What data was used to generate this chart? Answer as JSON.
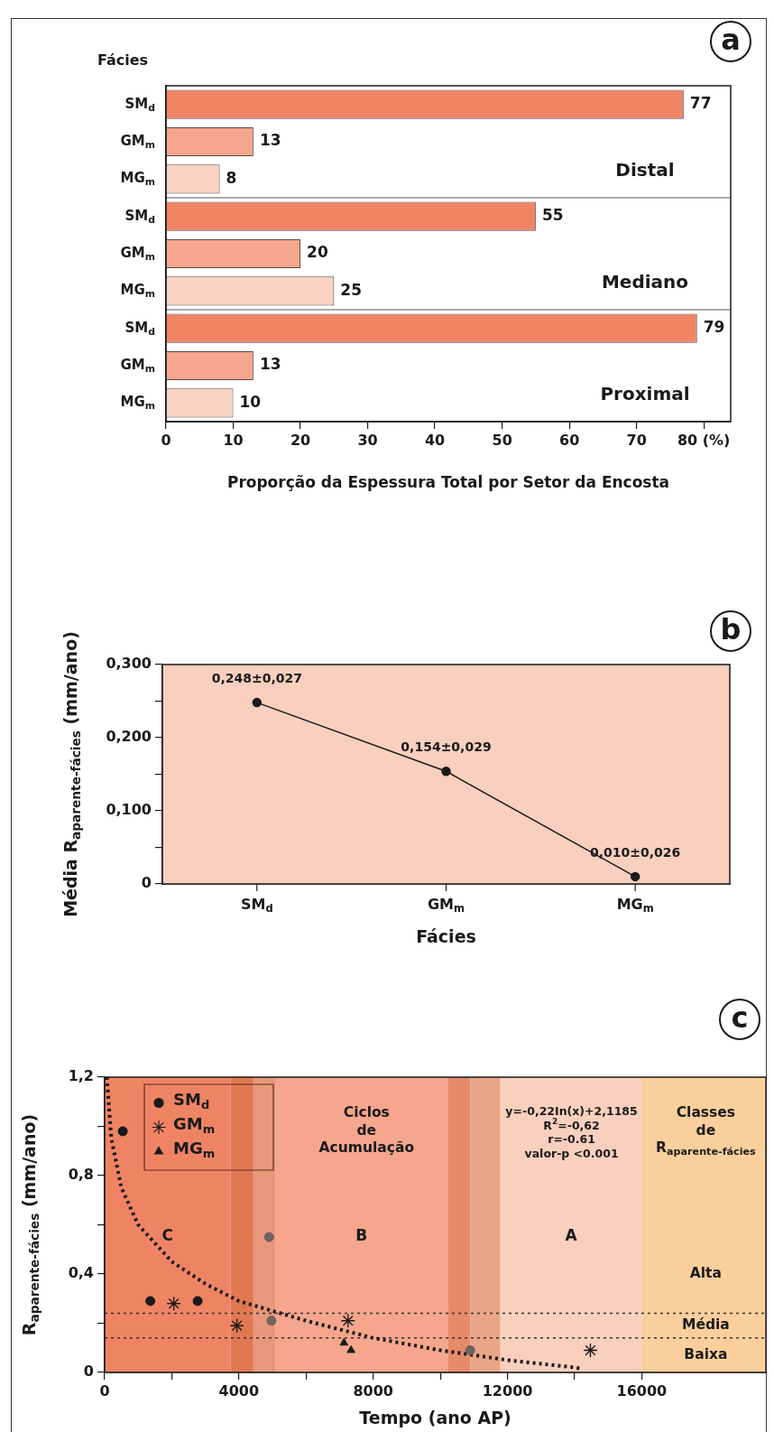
{
  "chart_data": [
    {
      "type": "bar",
      "orientation": "horizontal",
      "title": "a",
      "ylabel": "Fácies",
      "xlabel": "Proporção da Espessura Total por Setor da Encosta",
      "categories": [
        "SM$_{d}$",
        "GM$_{m}$",
        "MG$_{m}$",
        "SM$_{d}$",
        "GM$_{m}$",
        "MG$_{m}$",
        "SM$_{d}$",
        "GM$_{m}$",
        "MG$_{m}$"
      ],
      "values": [
        77,
        13,
        8,
        55,
        20,
        25,
        79,
        13,
        10
      ],
      "colors": [
        "#f08465",
        "#f5a68c",
        "#f9d3c3",
        "#f08465",
        "#f5a68c",
        "#f9d3c3",
        "#f08465",
        "#f5a68c",
        "#f9d3c3"
      ],
      "xlim": [
        0,
        84
      ],
      "xticks": [
        0,
        10,
        20,
        30,
        40,
        50,
        60,
        70,
        {
          "value": 80,
          "label": "80 (%)"
        }
      ],
      "data_labels": true,
      "annotations": [
        "Distal",
        "Mediano",
        "Proximal"
      ]
    },
    {
      "type": "line",
      "title": "b",
      "xlabel": "Fácies",
      "ylabel": "Média R$_{aparente-fácies}$ (mm/ano)",
      "categories": [
        "SM$_{d}$",
        "GM$_{m}$",
        "MG$_{m}$"
      ],
      "values": [
        0.248,
        0.154,
        0.01
      ],
      "color": "#1a1a1a",
      "marker": "circle",
      "value_labels": [
        "0,248±0,027",
        "0,154±0,029",
        "0,010±0,026"
      ],
      "ylim": [
        0,
        0.3
      ],
      "yticks": [
        0,
        {
          "value": 0.05,
          "label": null
        },
        {
          "value": 0.1,
          "label": "0,100"
        },
        {
          "value": 0.15,
          "label": null
        },
        {
          "value": 0.2,
          "label": "0,200"
        },
        {
          "value": 0.25,
          "label": null
        },
        {
          "value": 0.3,
          "label": "0,300"
        }
      ]
    },
    {
      "type": "scatter",
      "title": "c",
      "xlabel": "Tempo (ano AP)",
      "ylabel": "R$_{aparente-fácies}$ (mm/ano)",
      "legend": "top left",
      "series": [
        {
          "name": "SM$_{d}$",
          "type": "scatter",
          "marker": "circle",
          "color": "#1a1a1a",
          "colors": [
            "#1a1a1a",
            "#1a1a1a",
            "#1a1a1a",
            "#6e625c",
            "#6e625c",
            "#6e625c"
          ],
          "x": [
            540,
            1360,
            2770,
            4900,
            4970,
            10890
          ],
          "values": [
            0.98,
            0.29,
            0.29,
            0.55,
            0.21,
            0.09
          ]
        },
        {
          "name": "GM$_{m}$",
          "type": "scatter",
          "marker": "cross",
          "color": "#1a1a1a",
          "x": [
            2060,
            3940,
            7250,
            14470
          ],
          "values": [
            0.28,
            0.19,
            0.21,
            0.09
          ]
        },
        {
          "name": "MG$_{m}$",
          "type": "scatter",
          "marker": "triangle",
          "color": "#1a1a1a",
          "x": [
            7130,
            7340
          ],
          "values": [
            0.12,
            0.09
          ]
        },
        {
          "type": "line",
          "marker": "none",
          "line_style": "dotted",
          "color": "#1a1a1a",
          "x": [
            65,
            200,
            500,
            1000,
            2000,
            3000,
            4000,
            6000,
            8000,
            10000,
            12000,
            14000,
            14200
          ],
          "values": [
            1.2,
            0.95,
            0.75,
            0.6,
            0.45,
            0.36,
            0.29,
            0.21,
            0.14,
            0.09,
            0.05,
            0.02,
            0.015
          ]
        }
      ],
      "bands": [
        {
          "axis": "x",
          "from": 0,
          "to": 3750,
          "label": "C",
          "color": "#ef8465"
        },
        {
          "axis": "x",
          "from": 3750,
          "to": 4430,
          "color": "#e27852"
        },
        {
          "axis": "x",
          "from": 4430,
          "to": 5080,
          "color": "#e8977a"
        },
        {
          "axis": "x",
          "from": 5080,
          "to": 10220,
          "label": "B",
          "color": "#f5a68c"
        },
        {
          "axis": "x",
          "from": 10220,
          "to": 10900,
          "color": "#e58b6a"
        },
        {
          "axis": "x",
          "from": 10900,
          "to": 11790,
          "color": "#e9a686"
        },
        {
          "axis": "x",
          "from": 11790,
          "to": 16000,
          "label": "A",
          "color": "#f9cfbd"
        },
        {
          "axis": "x",
          "from": 16000,
          "to": 19700,
          "color": "#fbcf9b"
        }
      ],
      "ref_lines": [
        {
          "axis": "y",
          "value": 0.24,
          "color": "#333333",
          "line_style": "dotted"
        },
        {
          "axis": "y",
          "value": 0.14,
          "color": "#333333",
          "line_style": "dotted"
        }
      ],
      "annotations": [
        "Ciclos\nde\nAcumulação",
        "y=-0,22In(x)+2,1185\nR$^{2}$=-0,62\nr=-0.61\nvalor-p <0.001",
        "Classes\nde\nR$_{aparente-fácies}$",
        "Alta",
        "Média",
        "Baixa"
      ],
      "xlim": [
        0,
        19700
      ],
      "xticks": [
        0,
        {
          "value": 2000,
          "label": null
        },
        4000,
        {
          "value": 6000,
          "label": null
        },
        8000,
        {
          "value": 10000,
          "label": null
        },
        12000,
        {
          "value": 14000,
          "label": null
        },
        16000
      ],
      "ylim": [
        0,
        1.2
      ],
      "yticks": [
        0,
        {
          "value": 0.2,
          "label": null
        },
        {
          "value": 0.4,
          "label": "0,4"
        },
        {
          "value": 0.6,
          "label": null
        },
        {
          "value": 0.8,
          "label": "0,8"
        },
        {
          "value": 1.0,
          "label": null
        },
        {
          "value": 1.2,
          "label": "1,2"
        }
      ]
    }
  ]
}
